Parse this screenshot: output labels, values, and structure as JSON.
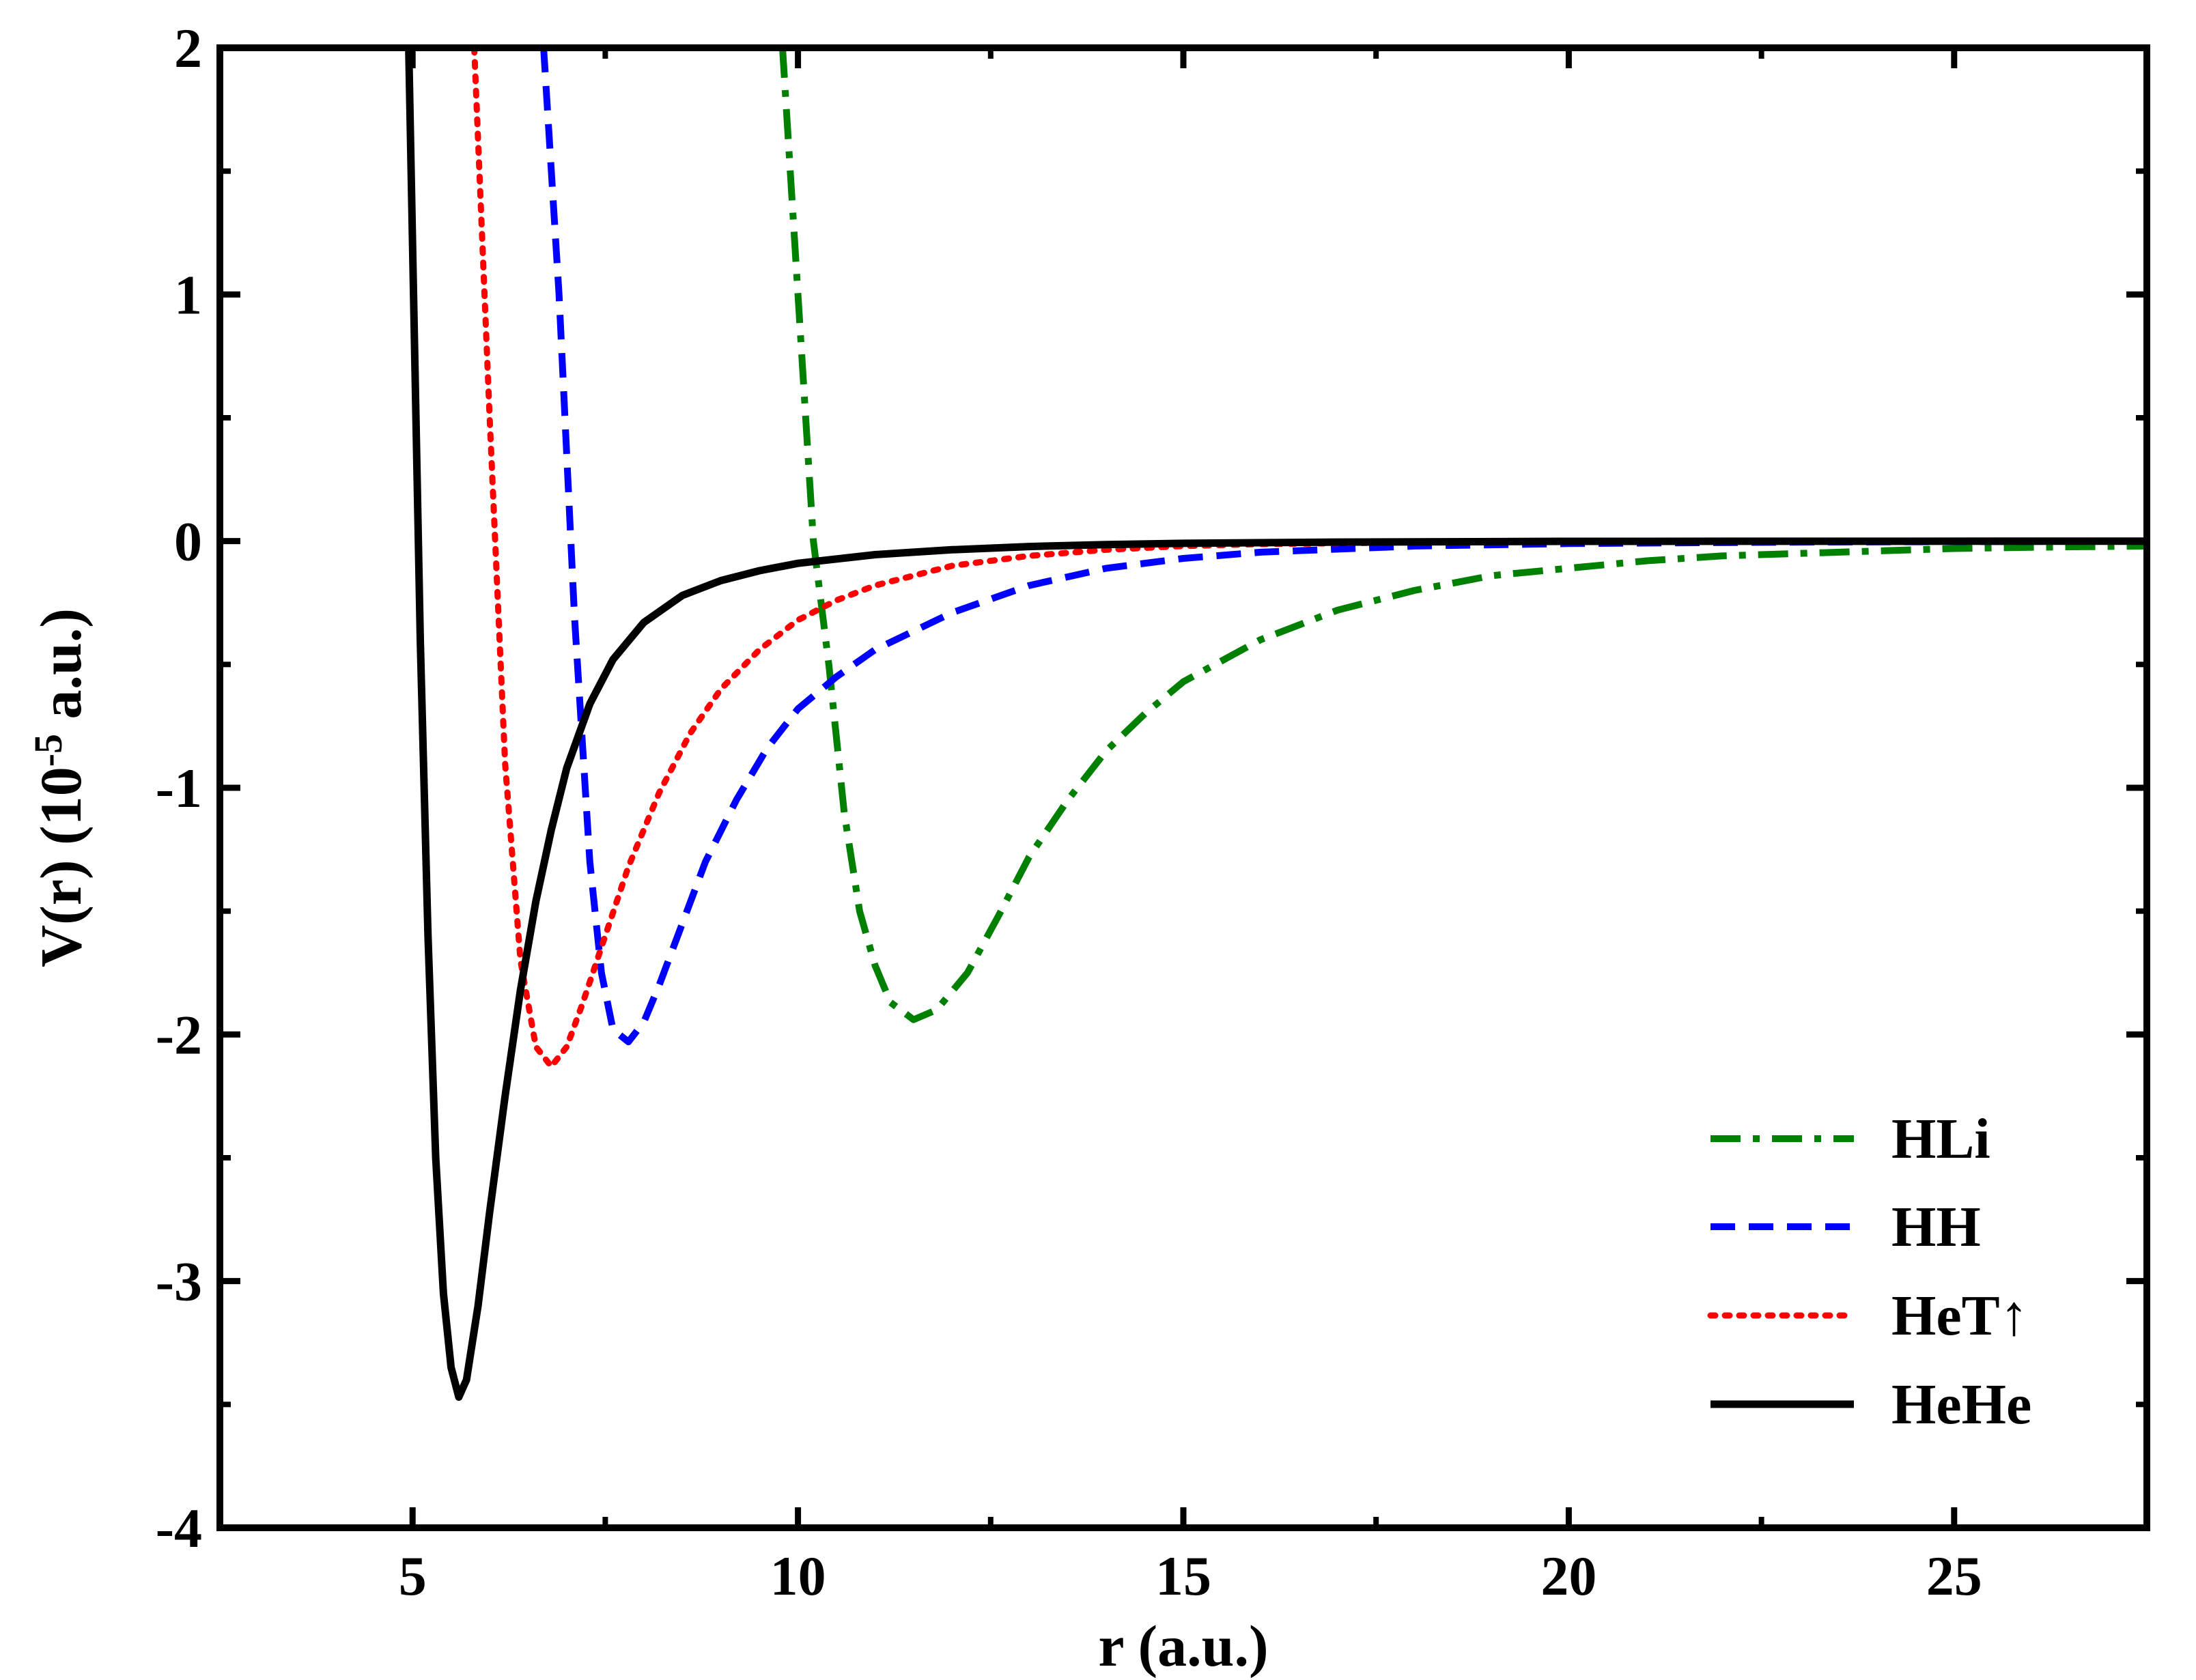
{
  "chart_data": {
    "type": "line",
    "title": "",
    "xlabel": "r (a.u.)",
    "ylabel_main": "V(r) (10",
    "ylabel_exp": "-5",
    "ylabel_tail": " a.u.)",
    "xlim": [
      2.5,
      27.5
    ],
    "ylim": [
      -4,
      2
    ],
    "xticks": [
      5,
      10,
      15,
      20,
      25
    ],
    "xtick_labels": [
      "5",
      "10",
      "15",
      "20",
      "25"
    ],
    "yticks": [
      2,
      1,
      0,
      -1,
      -2,
      -3,
      -4
    ],
    "ytick_labels": [
      "2",
      "1",
      "0",
      "-1",
      "-2",
      "-3",
      "-4"
    ],
    "grid": false,
    "legend_position": "bottom-right",
    "series": [
      {
        "name": "HLi",
        "color": "#008000",
        "dash": "dashdot",
        "x": [
          9.8,
          10.0,
          10.2,
          10.4,
          10.6,
          10.8,
          11.0,
          11.2,
          11.5,
          11.8,
          12.2,
          12.6,
          13.0,
          13.5,
          14.0,
          14.5,
          15.0,
          16.0,
          17.0,
          18.0,
          19.0,
          20.0,
          21.0,
          22.0,
          23.0,
          24.0,
          25.0,
          26.0,
          27.5
        ],
        "y": [
          2.0,
          1.0,
          0.0,
          -0.5,
          -1.1,
          -1.5,
          -1.72,
          -1.87,
          -1.94,
          -1.9,
          -1.75,
          -1.52,
          -1.28,
          -1.05,
          -0.85,
          -0.7,
          -0.57,
          -0.4,
          -0.28,
          -0.2,
          -0.14,
          -0.11,
          -0.08,
          -0.06,
          -0.05,
          -0.04,
          -0.03,
          -0.025,
          -0.02
        ]
      },
      {
        "name": "HH",
        "color": "#0000ff",
        "dash": "dashed",
        "x": [
          6.7,
          6.9,
          7.1,
          7.3,
          7.45,
          7.6,
          7.8,
          8.0,
          8.2,
          8.5,
          8.8,
          9.2,
          9.6,
          10.0,
          10.5,
          11.0,
          12.0,
          13.0,
          14.0,
          15.0,
          16.0,
          18.0,
          20.0,
          23.0,
          27.5
        ],
        "y": [
          2.0,
          1.0,
          -0.3,
          -1.3,
          -1.75,
          -1.98,
          -2.03,
          -1.95,
          -1.8,
          -1.55,
          -1.3,
          -1.05,
          -0.84,
          -0.68,
          -0.55,
          -0.44,
          -0.29,
          -0.18,
          -0.11,
          -0.07,
          -0.045,
          -0.02,
          -0.01,
          -0.004,
          0.0
        ]
      },
      {
        "name": "HeT↑",
        "color": "#ff0000",
        "dash": "dotted",
        "x": [
          5.8,
          6.0,
          6.2,
          6.4,
          6.6,
          6.8,
          7.0,
          7.2,
          7.5,
          7.8,
          8.2,
          8.6,
          9.0,
          9.5,
          10.0,
          10.5,
          11.0,
          12.0,
          13.0,
          14.0,
          15.0,
          16.0,
          18.0,
          20.0,
          23.0,
          27.5
        ],
        "y": [
          2.0,
          0.5,
          -0.9,
          -1.7,
          -2.05,
          -2.13,
          -2.05,
          -1.88,
          -1.6,
          -1.32,
          -1.02,
          -0.78,
          -0.6,
          -0.44,
          -0.32,
          -0.24,
          -0.18,
          -0.1,
          -0.06,
          -0.035,
          -0.02,
          -0.012,
          -0.005,
          -0.002,
          -0.001,
          0.0
        ]
      },
      {
        "name": "HeHe",
        "color": "#000000",
        "dash": "solid",
        "x": [
          4.95,
          5.0,
          5.1,
          5.2,
          5.3,
          5.4,
          5.5,
          5.6,
          5.7,
          5.85,
          6.0,
          6.2,
          6.4,
          6.6,
          6.8,
          7.0,
          7.3,
          7.6,
          8.0,
          8.5,
          9.0,
          9.5,
          10.0,
          11.0,
          12.0,
          13.0,
          14.0,
          15.0,
          17.0,
          20.0,
          27.5
        ],
        "y": [
          2.0,
          1.2,
          -0.4,
          -1.6,
          -2.5,
          -3.05,
          -3.35,
          -3.47,
          -3.4,
          -3.1,
          -2.72,
          -2.25,
          -1.82,
          -1.46,
          -1.17,
          -0.92,
          -0.66,
          -0.48,
          -0.33,
          -0.22,
          -0.16,
          -0.12,
          -0.09,
          -0.055,
          -0.035,
          -0.022,
          -0.014,
          -0.009,
          -0.004,
          -0.001,
          0.0
        ]
      }
    ]
  }
}
